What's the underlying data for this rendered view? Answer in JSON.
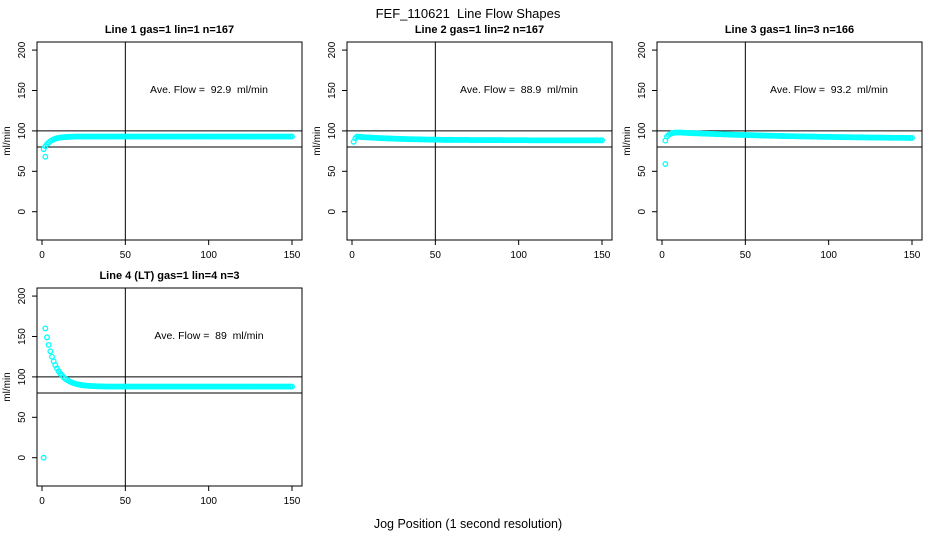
{
  "page": {
    "main_title": "FEF_110621  Line Flow Shapes",
    "x_axis_label": "Jog Position (1 second resolution)",
    "background_color": "#ffffff",
    "point_color": "#00FFFF",
    "axis_color": "#000000",
    "marker": "open-circle"
  },
  "chart_data": [
    {
      "type": "scatter",
      "title": "Line 1 gas=1 lin=1 n=167",
      "annotation": "Ave. Flow =  92.9  ml/min",
      "ylabel": "ml/min",
      "xticks": [
        0,
        50,
        100,
        150
      ],
      "yticks": [
        0,
        50,
        100,
        150,
        200
      ],
      "xlim": [
        -3,
        156
      ],
      "ylim": [
        -35,
        210
      ],
      "hlines": [
        100,
        80
      ],
      "vline": 50,
      "x_start": 1,
      "x_step": 1,
      "y_rle": [
        77.4,
        80.9,
        83.6,
        85.6,
        87.3,
        88.5,
        89.5,
        90.3,
        90.9,
        91.4,
        91.7,
        92,
        92.2,
        92.4,
        92.5,
        92.6,
        92.7,
        92.8,
        92.8,
        92.9,
        [
          130,
          93
        ]
      ],
      "extra_points": [
        [
          2,
          68
        ]
      ]
    },
    {
      "type": "scatter",
      "title": "Line 2 gas=1 lin=2 n=167",
      "annotation": "Ave. Flow =  88.9  ml/min",
      "ylabel": "ml/min",
      "xticks": [
        0,
        50,
        100,
        150
      ],
      "yticks": [
        0,
        50,
        100,
        150,
        200
      ],
      "xlim": [
        -3,
        156
      ],
      "ylim": [
        -35,
        210
      ],
      "hlines": [
        100,
        80
      ],
      "vline": 50,
      "x_start": 1,
      "x_step": 1,
      "y_rle": [
        86.5,
        91,
        92.9,
        92.7,
        92.6,
        92.4,
        92.3,
        92.1,
        92,
        91.9,
        91.7,
        91.6,
        91.5,
        91.4,
        91.3,
        91.2,
        91.1,
        91,
        90.9,
        90.8,
        90.7,
        90.6,
        90.6,
        90.5,
        90.4,
        90.3,
        90.3,
        90.2,
        90.1,
        90.1,
        90,
        89.9,
        89.9,
        89.8,
        89.8,
        89.7,
        89.7,
        89.6,
        89.6,
        89.5,
        89.5,
        89.4,
        89.4,
        89.3,
        89.3,
        89.3,
        89.2,
        89.2,
        89.2,
        89.1,
        89.1,
        89.1,
        89,
        89,
        89,
        [
          5,
          88.9
        ],
        [
          10,
          88.8
        ],
        [
          10,
          88.7
        ],
        [
          10,
          88.6
        ],
        [
          15,
          88.5
        ],
        [
          20,
          88.4
        ],
        [
          25,
          88.3
        ]
      ],
      "extra_points": []
    },
    {
      "type": "scatter",
      "title": "Line 3 gas=1 lin=3 n=166",
      "annotation": "Ave. Flow =  93.2  ml/min",
      "ylabel": "ml/min",
      "xticks": [
        0,
        50,
        100,
        150
      ],
      "yticks": [
        0,
        50,
        100,
        150,
        200
      ],
      "xlim": [
        -3,
        156
      ],
      "ylim": [
        -35,
        210
      ],
      "hlines": [
        100,
        80
      ],
      "vline": 50,
      "x_start": 2,
      "x_step": 1,
      "y_rle": [
        88,
        93,
        95,
        96.3,
        97.1,
        97.6,
        97.9,
        98,
        98,
        97.9,
        97.8,
        97.7,
        97.6,
        97.5,
        97.4,
        97.3,
        97.2,
        97.1,
        97.1,
        97,
        96.9,
        96.8,
        96.7,
        96.6,
        96.6,
        96.5,
        96.4,
        96.3,
        96.2,
        96.2,
        96.1,
        96,
        95.9,
        95.9,
        95.8,
        95.7,
        95.6,
        95.6,
        95.5,
        95.4,
        95.4,
        95.3,
        95.2,
        95.2,
        95.1,
        95,
        95,
        94.9,
        94.9,
        94.8,
        94.7,
        94.7,
        94.6,
        94.6,
        94.5,
        94.4,
        94.4,
        94.3,
        94.3,
        94.2,
        94.2,
        94.1,
        94.1,
        94,
        94,
        93.9,
        93.9,
        93.8,
        93.8,
        93.7,
        93.7,
        93.6,
        93.6,
        93.5,
        93.5,
        93.4,
        93.4,
        93.4,
        93.3,
        93.3,
        93.2,
        93.2,
        93.1,
        93.1,
        93.1,
        93,
        93,
        93,
        92.9,
        92.9,
        92.8,
        92.8,
        92.8,
        92.7,
        92.7,
        92.7,
        92.6,
        92.6,
        92.6,
        92.5,
        92.5,
        92.5,
        92.4,
        92.4,
        92.4,
        92.3,
        92.3,
        92.3,
        92.2,
        92.2,
        92.2,
        92.2,
        92.1,
        92.1,
        92.1,
        92,
        92,
        92,
        92,
        91.9,
        91.9,
        91.9,
        91.9,
        91.8,
        91.8,
        91.8,
        91.8,
        91.7,
        91.7,
        91.7,
        91.7,
        91.6,
        91.6,
        91.6,
        91.6,
        91.5,
        91.5,
        91.5,
        91.5,
        91.4,
        91.4,
        91.4,
        91.4,
        91.4,
        91.3,
        91.3,
        91.3,
        91.3,
        91.3
      ],
      "extra_points": [
        [
          2,
          59
        ]
      ]
    },
    {
      "type": "scatter",
      "title": "Line 4 (LT) gas=1 lin=4 n=3",
      "annotation": "Ave. Flow =  89  ml/min",
      "ylabel": "ml/min",
      "xticks": [
        0,
        50,
        100,
        150
      ],
      "yticks": [
        0,
        50,
        100,
        150,
        200
      ],
      "xlim": [
        -3,
        156
      ],
      "ylim": [
        -35,
        210
      ],
      "hlines": [
        100,
        80
      ],
      "vline": 50,
      "x_start": 1,
      "x_step": 1,
      "y_rle": [
        0,
        160,
        148.9,
        139.6,
        131.7,
        125,
        119.3,
        114.5,
        110.4,
        107,
        104.1,
        101.6,
        99.5,
        97.7,
        96.3,
        95,
        93.9,
        93,
        92.2,
        91.6,
        91,
        90.6,
        90.2,
        89.8,
        89.5,
        89.3,
        89.1,
        88.9,
        88.8,
        88.7,
        88.6,
        88.5,
        88.4,
        88.3,
        88.3,
        88.2,
        88.2,
        88.1,
        88.1,
        88.1,
        [
          110,
          88
        ]
      ],
      "extra_points": []
    }
  ]
}
